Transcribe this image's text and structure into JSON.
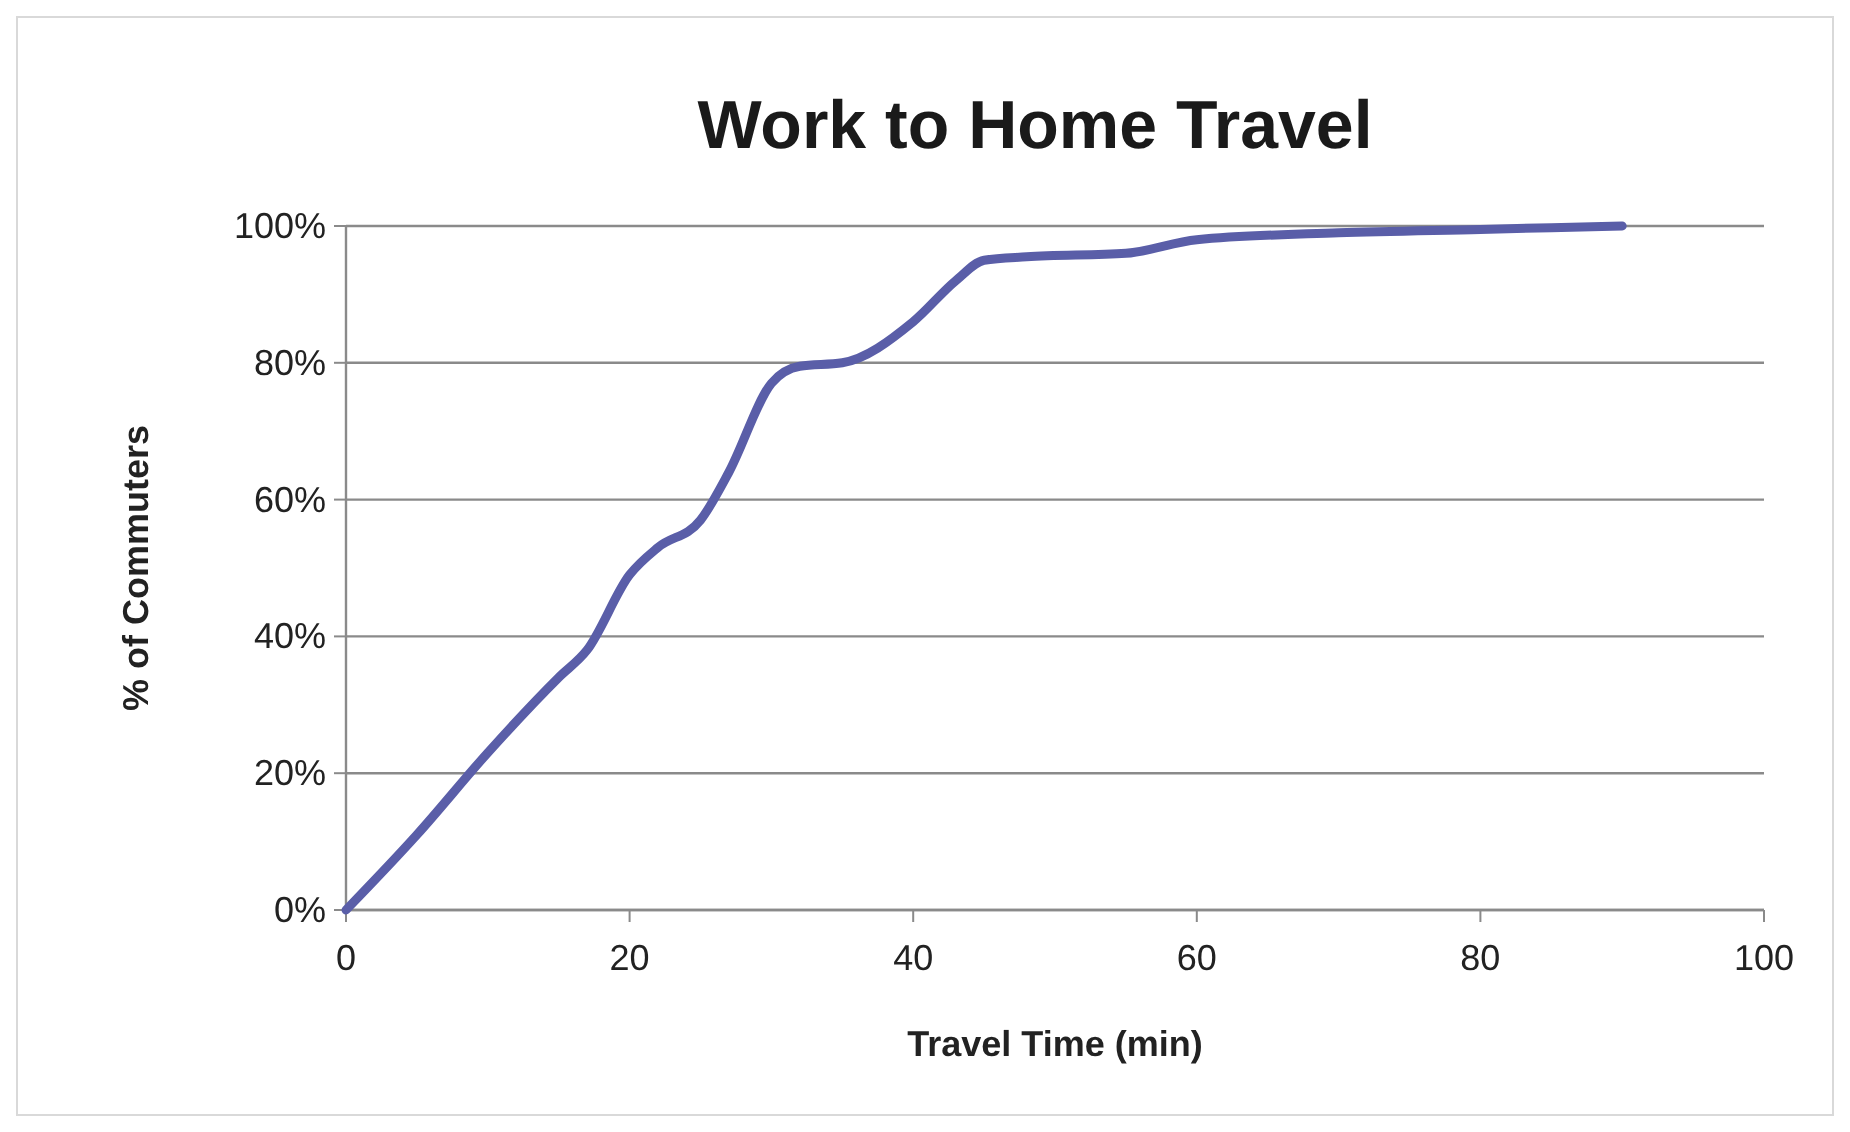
{
  "chart_data": {
    "type": "line",
    "title": "Work to Home Travel",
    "xlabel": "Travel Time (min)",
    "ylabel": "% of Commuters",
    "x": [
      0,
      5,
      10,
      15,
      17,
      20,
      22,
      25,
      27,
      30,
      32,
      35,
      40,
      43,
      45,
      48,
      55,
      60,
      70,
      80,
      90
    ],
    "series": [
      {
        "color": "#5a5ea8",
        "values": [
          0,
          11,
          23,
          34,
          38,
          49,
          53,
          57,
          64,
          77,
          79.5,
          80,
          86,
          92,
          95,
          95.5,
          96,
          98,
          99,
          99.5,
          100
        ]
      }
    ],
    "xlim": [
      0,
      100
    ],
    "xticks": [
      0,
      20,
      40,
      60,
      80,
      100
    ],
    "ylim": [
      0,
      100
    ],
    "yticks": [
      {
        "value": 0,
        "label": "0%"
      },
      {
        "value": 20,
        "label": "20%"
      },
      {
        "value": 40,
        "label": "40%"
      },
      {
        "value": 60,
        "label": "60%"
      },
      {
        "value": 80,
        "label": "80%"
      },
      {
        "value": 100,
        "label": "100%"
      }
    ],
    "grid": "y",
    "marker": "none",
    "line_style": "solid"
  }
}
